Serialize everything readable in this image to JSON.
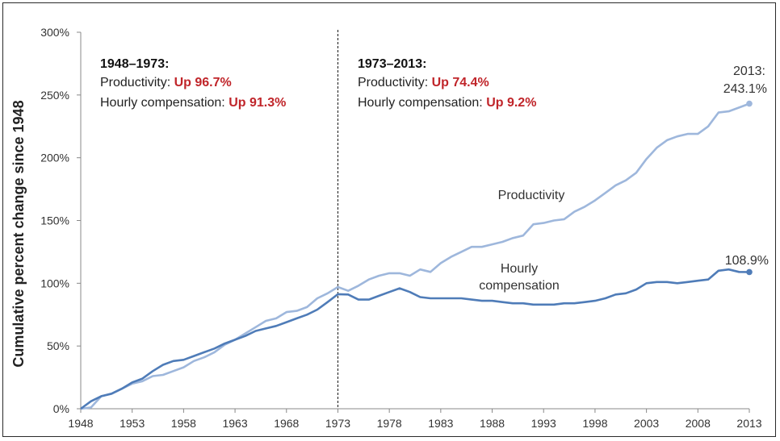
{
  "chart_data": {
    "type": "line",
    "ylabel": "Cumulative percent change since 1948",
    "xlabel": "",
    "ylim": [
      0,
      300
    ],
    "xlim": [
      1948,
      2013
    ],
    "y_ticks": [
      "0%",
      "50%",
      "100%",
      "150%",
      "200%",
      "250%",
      "300%"
    ],
    "y_tick_values": [
      0,
      50,
      100,
      150,
      200,
      250,
      300
    ],
    "x_ticks": [
      "1948",
      "1953",
      "1958",
      "1963",
      "1968",
      "1973",
      "1978",
      "1983",
      "1988",
      "1993",
      "1998",
      "2003",
      "2008",
      "2013"
    ],
    "x_tick_values": [
      1948,
      1953,
      1958,
      1963,
      1968,
      1973,
      1978,
      1983,
      1988,
      1993,
      1998,
      2003,
      2008,
      2013
    ],
    "grid": false,
    "x": [
      1948,
      1949,
      1950,
      1951,
      1952,
      1953,
      1954,
      1955,
      1956,
      1957,
      1958,
      1959,
      1960,
      1961,
      1962,
      1963,
      1964,
      1965,
      1966,
      1967,
      1968,
      1969,
      1970,
      1971,
      1972,
      1973,
      1974,
      1975,
      1976,
      1977,
      1978,
      1979,
      1980,
      1981,
      1982,
      1983,
      1984,
      1985,
      1986,
      1987,
      1988,
      1989,
      1990,
      1991,
      1992,
      1993,
      1994,
      1995,
      1996,
      1997,
      1998,
      1999,
      2000,
      2001,
      2002,
      2003,
      2004,
      2005,
      2006,
      2007,
      2008,
      2009,
      2010,
      2011,
      2012,
      2013
    ],
    "series": [
      {
        "name": "Productivity",
        "color": "#9eb7dc",
        "values": [
          0,
          1,
          10,
          12,
          16,
          20,
          22,
          26,
          27,
          30,
          33,
          38,
          41,
          45,
          51,
          55,
          60,
          65,
          70,
          72,
          77,
          78,
          81,
          88,
          92,
          97,
          94,
          98,
          103,
          106,
          108,
          108,
          106,
          111,
          109,
          116,
          121,
          125,
          129,
          129,
          131,
          133,
          136,
          138,
          147,
          148,
          150,
          151,
          157,
          161,
          166,
          172,
          178,
          182,
          188,
          199,
          208,
          214,
          217,
          219,
          219,
          225,
          236,
          237,
          240,
          243.1
        ]
      },
      {
        "name": "Hourly compensation",
        "color": "#4f7cb8",
        "values": [
          0,
          6,
          10,
          12,
          16,
          21,
          24,
          30,
          35,
          38,
          39,
          42,
          45,
          48,
          52,
          55,
          58,
          62,
          64,
          66,
          69,
          72,
          75,
          79,
          85,
          91.3,
          91,
          87,
          87,
          90,
          93,
          96,
          93,
          89,
          88,
          88,
          88,
          88,
          87,
          86,
          86,
          85,
          84,
          84,
          83,
          83,
          83,
          84,
          84,
          85,
          86,
          88,
          91,
          92,
          95,
          100,
          101,
          101,
          100,
          101,
          102,
          103,
          110,
          111,
          109,
          108.9
        ]
      }
    ],
    "series_labels": [
      {
        "lines": [
          "Productivity"
        ]
      },
      {
        "lines": [
          "Hourly",
          "compensation"
        ]
      }
    ],
    "end_labels": {
      "productivity": [
        "2013:",
        "243.1%"
      ],
      "compensation": [
        "108.9%"
      ]
    },
    "divider_year": 1973,
    "periods": [
      {
        "title": "1948–1973:",
        "productivity_label": "Productivity: ",
        "productivity_value": "Up 96.7%",
        "compensation_label": "Hourly compensation: ",
        "compensation_value": "Up 91.3%"
      },
      {
        "title": "1973–2013:",
        "productivity_label": "Productivity: ",
        "productivity_value": "Up 74.4%",
        "compensation_label": "Hourly compensation: ",
        "compensation_value": "Up 9.2%"
      }
    ]
  }
}
